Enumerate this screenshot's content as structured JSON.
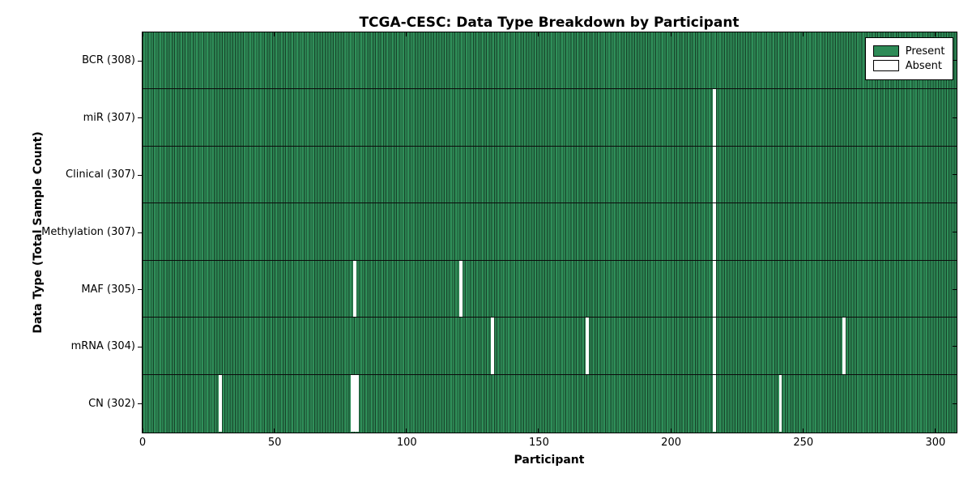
{
  "chart_data": {
    "type": "heatmap",
    "title": "TCGA-CESC: Data Type Breakdown by Participant",
    "xlabel": "Participant",
    "ylabel": "Data Type (Total Sample Count)",
    "xlim": [
      0,
      308
    ],
    "x_ticks": [
      0,
      50,
      100,
      150,
      200,
      250,
      300
    ],
    "total_participants": 308,
    "grid": false,
    "legend_position": "upper right",
    "legend": [
      {
        "label": "Present",
        "color": "#2E8B57"
      },
      {
        "label": "Absent",
        "color": "#FFFFFF"
      }
    ],
    "value_encoding": "green cell = sample present for participant, white gap = sample absent",
    "rows": [
      {
        "label": "BCR (308)",
        "data_type": "BCR",
        "present_count": 308,
        "absent_count": 0,
        "absent_participants": []
      },
      {
        "label": "miR (307)",
        "data_type": "miR",
        "present_count": 307,
        "absent_count": 1,
        "absent_participants": [
          216
        ]
      },
      {
        "label": "Clinical (307)",
        "data_type": "Clinical",
        "present_count": 307,
        "absent_count": 1,
        "absent_participants": [
          216
        ]
      },
      {
        "label": "Methylation (307)",
        "data_type": "Methylation",
        "present_count": 307,
        "absent_count": 1,
        "absent_participants": [
          216
        ]
      },
      {
        "label": "MAF (305)",
        "data_type": "MAF",
        "present_count": 305,
        "absent_count": 3,
        "absent_participants": [
          80,
          120,
          216
        ]
      },
      {
        "label": "mRNA (304)",
        "data_type": "mRNA",
        "present_count": 304,
        "absent_count": 4,
        "absent_participants": [
          132,
          168,
          216,
          265
        ]
      },
      {
        "label": "CN (302)",
        "data_type": "CN",
        "present_count": 302,
        "absent_count": 6,
        "absent_participants": [
          29,
          79,
          80,
          81,
          216,
          241
        ]
      }
    ],
    "colors": {
      "present": "#2E8B57",
      "absent": "#FFFFFF",
      "bar_edge": "#17452A",
      "axis": "#000000",
      "background": "#FFFFFF"
    }
  }
}
